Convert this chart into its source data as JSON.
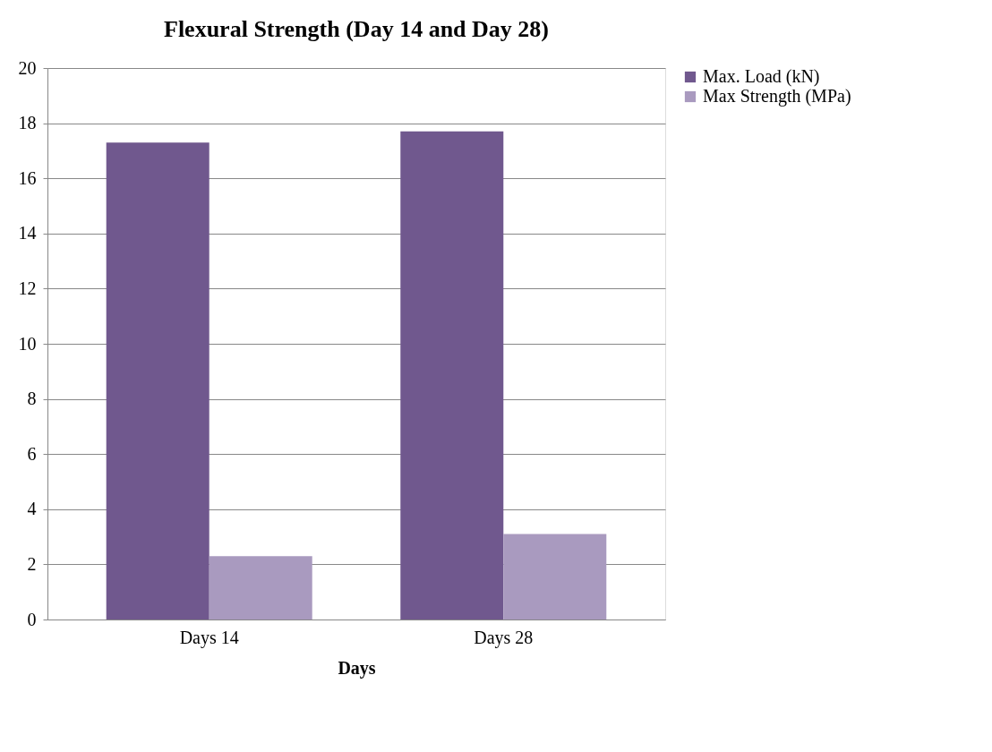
{
  "chart_data": {
    "type": "bar",
    "title": "Flexural Strength (Day 14 and Day 28)",
    "xlabel": "Days",
    "categories": [
      "Days 14",
      "Days 28"
    ],
    "series": [
      {
        "name": "Max. Load (kN)",
        "color": "#70588e",
        "values": [
          17.3,
          17.7
        ]
      },
      {
        "name": "Max Strength (MPa)",
        "color": "#a99abf",
        "values": [
          2.3,
          3.1
        ]
      }
    ],
    "ylim": [
      0,
      20
    ],
    "yticks": [
      0,
      2,
      4,
      6,
      8,
      10,
      12,
      14,
      16,
      18,
      20
    ],
    "grid": "y",
    "legend": "right"
  }
}
